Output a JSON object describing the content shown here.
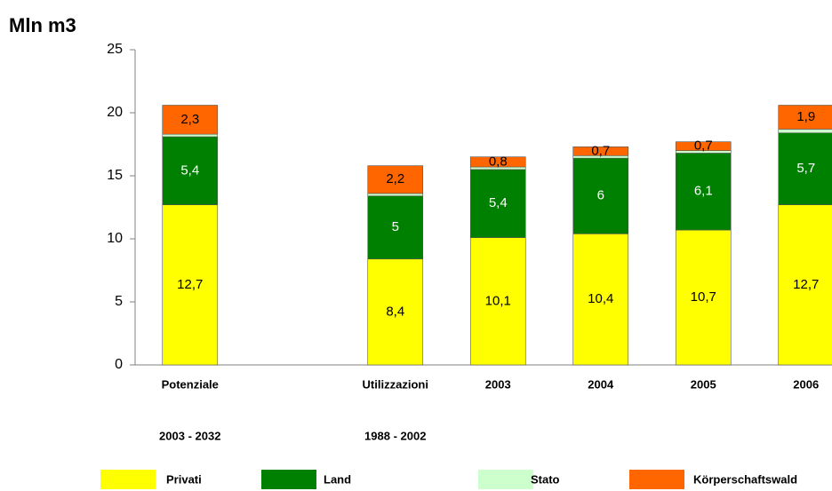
{
  "chart_data": {
    "type": "bar",
    "stacked": true,
    "title": "Mln m3",
    "categories": [
      [
        "Potenziale",
        "2003 - 2032"
      ],
      null,
      [
        "Utilizzazioni",
        "1988 - 2002"
      ],
      [
        "2003"
      ],
      [
        "2004"
      ],
      [
        "2005"
      ],
      [
        "2006"
      ]
    ],
    "series": [
      {
        "name": "Privati",
        "color": "#ffff00",
        "values": [
          12.7,
          null,
          8.4,
          10.1,
          10.4,
          10.7,
          12.7
        ],
        "value_labels": [
          "12,7",
          null,
          "8,4",
          "10,1",
          "10,4",
          "10,7",
          "12,7"
        ]
      },
      {
        "name": "Land",
        "color": "#008000",
        "values": [
          5.4,
          null,
          5,
          5.4,
          6,
          6.1,
          5.7
        ],
        "value_labels": [
          "5,4",
          null,
          "5",
          "5,4",
          "6",
          "6,1",
          "5,7"
        ]
      },
      {
        "name": "Stato",
        "color": "#ccffcc",
        "values": [
          0.2,
          null,
          0.2,
          0.2,
          0.2,
          0.2,
          0.3
        ]
      },
      {
        "name": "Körperschaftswald",
        "color": "#ff6600",
        "values": [
          2.3,
          null,
          2.2,
          0.8,
          0.7,
          0.7,
          1.9
        ],
        "value_labels": [
          "2,3",
          null,
          "2,2",
          "0,8",
          "0,7",
          "0,7",
          "1,9"
        ]
      }
    ],
    "ylim": [
      0,
      25
    ],
    "yticks": [
      0,
      5,
      10,
      15,
      20,
      25
    ],
    "grid": false,
    "legend": "bottom"
  }
}
